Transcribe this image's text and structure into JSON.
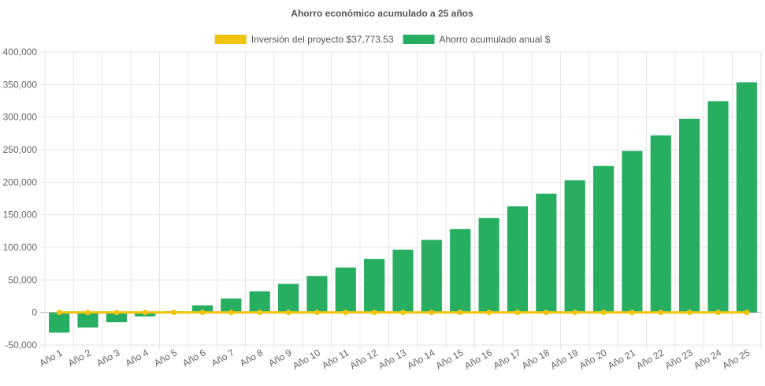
{
  "chart_data": {
    "type": "bar",
    "title": "Ahorro económico acumulado a 25 años",
    "xlabel": "",
    "ylabel": "",
    "ylim": [
      -50000,
      400000
    ],
    "yticks": [
      -50000,
      0,
      50000,
      100000,
      150000,
      200000,
      250000,
      300000,
      350000,
      400000
    ],
    "ytick_labels": [
      "-50,000",
      "0",
      "50,000",
      "100,000",
      "150,000",
      "200,000",
      "250,000",
      "300,000",
      "350,000",
      "400,000"
    ],
    "grid": true,
    "legend_position": "top-center",
    "categories": [
      "Año 1",
      "Año 2",
      "Año 3",
      "Año 4",
      "Año 5",
      "Año 6",
      "Año 7",
      "Año 8",
      "Año 9",
      "Año 10",
      "Año 11",
      "Año 12",
      "Año 13",
      "Año 14",
      "Año 15",
      "Año 16",
      "Año 17",
      "Año 18",
      "Año 19",
      "Año 20",
      "Año 21",
      "Año 22",
      "Año 23",
      "Año 24",
      "Año 25"
    ],
    "series": [
      {
        "name": "Inversión del proyecto $37,773.53",
        "type": "line",
        "color": "#f1c40f",
        "values": [
          0,
          0,
          0,
          0,
          0,
          0,
          0,
          0,
          0,
          0,
          0,
          0,
          0,
          0,
          0,
          0,
          0,
          0,
          0,
          0,
          0,
          0,
          0,
          0,
          0
        ]
      },
      {
        "name": "Ahorro acumulado anual $",
        "type": "bar",
        "color": "#27ae60",
        "values": [
          -31000,
          -23000,
          -15000,
          -6000,
          2000,
          11000,
          21500,
          32500,
          44000,
          56000,
          69000,
          82000,
          96500,
          111500,
          128000,
          145000,
          163000,
          182500,
          203000,
          225000,
          248000,
          272000,
          297500,
          324500,
          353500
        ]
      }
    ]
  }
}
